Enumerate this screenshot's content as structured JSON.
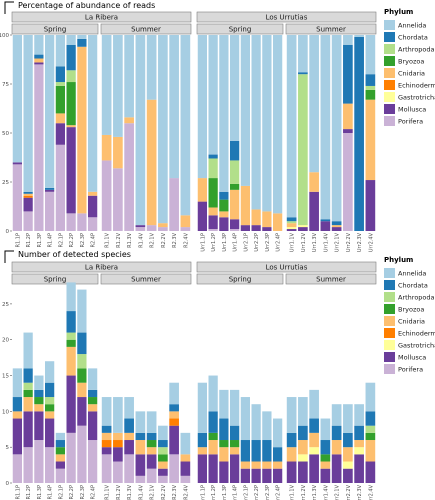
{
  "samples": [
    "R1.1P",
    "R1.2P",
    "R1.3P",
    "R1.4P",
    "R2.1P",
    "R2.2P",
    "R2.3P",
    "R2.4P",
    "R1.1V",
    "R1.2V",
    "R1.3V",
    "R1.4V",
    "R2.1V",
    "R2.2V",
    "R2.3V",
    "R2.4V",
    "Urr1.1P",
    "Urr1.2P",
    "Urr1.3P",
    "Urr1.4P",
    "Urr2.1P",
    "Urr2.2P",
    "Urr2.3P",
    "Urr2.4P",
    "Urr1.1V",
    "Urr1.2V",
    "Urr1.3V",
    "Urr1.4V",
    "Urr2.1V",
    "Urr2.2V",
    "Urr2.3V",
    "Urr2.4V"
  ],
  "legend": {
    "title": "Phylum",
    "phyla": [
      "Annelida",
      "Chordata",
      "Arthropoda",
      "Bryozoa",
      "Cnidaria",
      "Echinodermata",
      "Gastrotricha",
      "Mollusca",
      "Porifera"
    ],
    "colors": [
      "#a6cee3",
      "#1f78b4",
      "#b2df8a",
      "#33a02c",
      "#fdbf6f",
      "#ff7f00",
      "#ffff99",
      "#6a3d9a",
      "#cab2d6"
    ]
  },
  "colors": {
    "panel_bg": "#ffffff",
    "strip_bg": "#d9d9d9",
    "strip_border": "#7f7f7f",
    "axis_text": "#4d4d4d",
    "title_text": "#000000"
  },
  "chart_data": [
    {
      "type": "bar",
      "stacked": true,
      "title": "Percentage of abundance of reads",
      "ylim": [
        0,
        100
      ],
      "yticks": [
        0,
        25,
        50,
        75,
        100
      ],
      "site_labels": [
        "La Ribera",
        "Los Urrutias"
      ],
      "season_labels": [
        "Spring",
        "Summer",
        "Spring",
        "Summer"
      ],
      "series": [
        {
          "name": "Porifera",
          "values": [
            34,
            10,
            85,
            20,
            44,
            9,
            9,
            7,
            36,
            32,
            55,
            2,
            3,
            2,
            27,
            2,
            0,
            1,
            0,
            1,
            0,
            0,
            0,
            0,
            0,
            0,
            0,
            0,
            0,
            50,
            0,
            0
          ]
        },
        {
          "name": "Mollusca",
          "values": [
            1,
            7,
            1,
            1,
            11,
            44,
            0,
            11,
            0,
            0,
            0,
            1,
            0,
            0,
            0,
            0,
            15,
            7,
            7,
            5,
            3,
            3,
            2,
            0,
            1,
            2,
            20,
            5,
            2,
            2,
            0,
            26
          ]
        },
        {
          "name": "Gastrotricha",
          "values": [
            0,
            0,
            0,
            0,
            0,
            0,
            0,
            0,
            0,
            0,
            0,
            0,
            0,
            0,
            0,
            0,
            0,
            0,
            0,
            0,
            0,
            0,
            0,
            0,
            1,
            1,
            0,
            0,
            0,
            0,
            0,
            0
          ]
        },
        {
          "name": "Echinodermata",
          "values": [
            0,
            1,
            0,
            0,
            0,
            0,
            0,
            0,
            0,
            0,
            0,
            0,
            0,
            0,
            0,
            0,
            0,
            0,
            0,
            0,
            0,
            0,
            0,
            0,
            0,
            0,
            0,
            0,
            0,
            0,
            0,
            0
          ]
        },
        {
          "name": "Cnidaria",
          "values": [
            0,
            1,
            2,
            0,
            5,
            1,
            85,
            2,
            13,
            16,
            3,
            0,
            64,
            2,
            0,
            6,
            12,
            4,
            3,
            15,
            20,
            8,
            8,
            9,
            2,
            0,
            10,
            0,
            1,
            13,
            0,
            41
          ]
        },
        {
          "name": "Bryozoa",
          "values": [
            0,
            0,
            0,
            0,
            14,
            22,
            0,
            0,
            0,
            0,
            0,
            0,
            0,
            0,
            0,
            0,
            0,
            15,
            6,
            3,
            0,
            0,
            0,
            0,
            0,
            0,
            0,
            0,
            0,
            0,
            0,
            5
          ]
        },
        {
          "name": "Arthropoda",
          "values": [
            0,
            0,
            0,
            0,
            2,
            6,
            0,
            0,
            0,
            0,
            0,
            0,
            0,
            0,
            0,
            0,
            0,
            10,
            0,
            12,
            0,
            0,
            0,
            0,
            1,
            77,
            0,
            0,
            0,
            0,
            0,
            2
          ]
        },
        {
          "name": "Chordata",
          "values": [
            0,
            1,
            2,
            1,
            8,
            13,
            4,
            0,
            0,
            0,
            0,
            0,
            0,
            0,
            0,
            0,
            0,
            2,
            4,
            10,
            0,
            0,
            0,
            0,
            2,
            1,
            0,
            1,
            2,
            30,
            99,
            6
          ]
        },
        {
          "name": "Annelida",
          "values": [
            65,
            80,
            10,
            78,
            16,
            5,
            2,
            80,
            51,
            52,
            42,
            97,
            33,
            96,
            73,
            92,
            73,
            61,
            80,
            54,
            77,
            89,
            90,
            91,
            93,
            19,
            70,
            94,
            95,
            5,
            1,
            20
          ]
        }
      ]
    },
    {
      "type": "bar",
      "stacked": true,
      "title": "Number of detected species",
      "ylim": [
        0,
        27.5
      ],
      "yticks": [
        0,
        5,
        10,
        15,
        20,
        25
      ],
      "site_labels": [
        "La Ribera",
        "Los Urrutias"
      ],
      "season_labels": [
        "Spring",
        "Summer",
        "Spring",
        "Summer"
      ],
      "series": [
        {
          "name": "Porifera",
          "values": [
            4,
            5,
            6,
            5,
            2,
            7,
            8,
            6,
            4,
            3,
            4,
            1,
            2,
            1,
            4,
            1,
            0,
            0,
            0,
            0,
            0,
            0,
            0,
            0,
            0,
            0,
            0,
            0,
            0,
            0,
            0,
            0
          ]
        },
        {
          "name": "Mollusca",
          "values": [
            5,
            5,
            4,
            4,
            1,
            8,
            4,
            4,
            1,
            2,
            2,
            3,
            2,
            1,
            4,
            2,
            4,
            4,
            3,
            4,
            2,
            2,
            2,
            2,
            3,
            3,
            4,
            2,
            4,
            2,
            4,
            3
          ]
        },
        {
          "name": "Gastrotricha",
          "values": [
            0,
            0,
            0,
            0,
            0,
            0,
            0,
            0,
            0,
            0,
            0,
            0,
            0,
            0,
            0,
            0,
            0,
            0,
            0,
            0,
            0,
            0,
            0,
            0,
            0,
            1,
            1,
            0,
            0,
            1,
            1,
            0
          ]
        },
        {
          "name": "Echinodermata",
          "values": [
            0,
            0,
            0,
            0,
            0,
            0,
            0,
            0,
            1,
            1,
            0,
            0,
            0,
            0,
            1,
            0,
            0,
            0,
            0,
            0,
            0,
            0,
            0,
            0,
            0,
            0,
            0,
            0,
            0,
            0,
            0,
            0
          ]
        },
        {
          "name": "Cnidaria",
          "values": [
            1,
            2,
            1,
            1,
            1,
            4,
            2,
            1,
            1,
            1,
            1,
            2,
            1,
            1,
            1,
            1,
            1,
            2,
            2,
            1,
            1,
            1,
            1,
            1,
            2,
            2,
            2,
            1,
            2,
            2,
            1,
            3
          ]
        },
        {
          "name": "Bryozoa",
          "values": [
            0,
            1,
            1,
            1,
            1,
            1,
            2,
            1,
            0,
            0,
            0,
            0,
            1,
            1,
            0,
            0,
            0,
            1,
            1,
            1,
            0,
            0,
            0,
            0,
            0,
            0,
            0,
            1,
            0,
            0,
            0,
            1
          ]
        },
        {
          "name": "Arthropoda",
          "values": [
            0,
            1,
            0,
            1,
            0,
            1,
            2,
            0,
            0,
            0,
            0,
            0,
            0,
            1,
            0,
            0,
            0,
            0,
            0,
            0,
            0,
            0,
            0,
            0,
            0,
            0,
            0,
            0,
            0,
            0,
            0,
            1
          ]
        },
        {
          "name": "Chordata",
          "values": [
            2,
            2,
            1,
            2,
            1,
            3,
            3,
            1,
            1,
            0,
            2,
            1,
            1,
            1,
            1,
            0,
            2,
            3,
            3,
            2,
            3,
            3,
            3,
            2,
            2,
            2,
            2,
            2,
            2,
            2,
            2,
            2
          ]
        },
        {
          "name": "Annelida",
          "values": [
            4,
            5,
            2,
            3,
            1,
            4,
            6,
            3,
            4,
            5,
            3,
            3,
            3,
            2,
            3,
            3,
            7,
            5,
            4,
            5,
            6,
            5,
            4,
            4,
            5,
            4,
            4,
            3,
            3,
            4,
            3,
            4
          ]
        }
      ]
    }
  ]
}
